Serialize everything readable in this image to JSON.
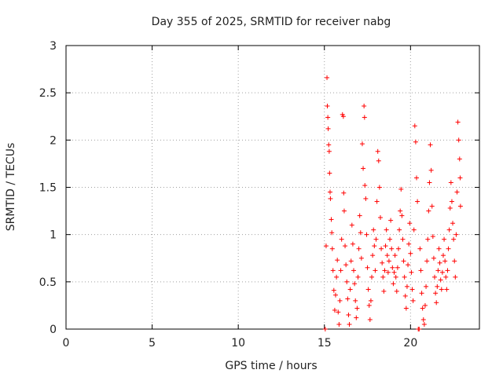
{
  "chart_data": {
    "type": "scatter",
    "title": "Day 355 of 2025, SRMTID for receiver nabg",
    "xlabel": "GPS time / hours",
    "ylabel": "SRMTID / TECUs",
    "xlim": [
      0,
      24
    ],
    "ylim": [
      0,
      3
    ],
    "xticks": [
      0,
      5,
      10,
      15,
      20
    ],
    "yticks": [
      0,
      0.5,
      1,
      1.5,
      2,
      2.5,
      3
    ],
    "grid": true,
    "marker": "+",
    "marker_color": "#ff0000",
    "series": [
      {
        "name": "SRMTID",
        "points": [
          [
            15.05,
            0.0
          ],
          [
            15.1,
            0.88
          ],
          [
            15.15,
            2.66
          ],
          [
            15.17,
            2.36
          ],
          [
            15.2,
            2.24
          ],
          [
            15.22,
            2.12
          ],
          [
            15.25,
            1.95
          ],
          [
            15.28,
            1.88
          ],
          [
            15.3,
            1.65
          ],
          [
            15.33,
            1.45
          ],
          [
            15.35,
            1.38
          ],
          [
            15.4,
            1.16
          ],
          [
            15.43,
            1.02
          ],
          [
            15.46,
            0.85
          ],
          [
            15.5,
            0.62
          ],
          [
            15.55,
            0.41
          ],
          [
            15.6,
            0.2
          ],
          [
            15.65,
            0.36
          ],
          [
            15.7,
            0.55
          ],
          [
            15.75,
            0.73
          ],
          [
            15.8,
            0.18
          ],
          [
            15.85,
            0.05
          ],
          [
            15.9,
            0.3
          ],
          [
            15.95,
            0.62
          ],
          [
            16.0,
            0.95
          ],
          [
            16.05,
            2.27
          ],
          [
            16.1,
            2.25
          ],
          [
            16.12,
            1.44
          ],
          [
            16.15,
            1.25
          ],
          [
            16.2,
            0.88
          ],
          [
            16.25,
            0.68
          ],
          [
            16.3,
            0.5
          ],
          [
            16.35,
            0.32
          ],
          [
            16.4,
            0.15
          ],
          [
            16.45,
            0.05
          ],
          [
            16.5,
            0.42
          ],
          [
            16.55,
            0.72
          ],
          [
            16.6,
            1.1
          ],
          [
            16.65,
            0.9
          ],
          [
            16.7,
            0.62
          ],
          [
            16.75,
            0.48
          ],
          [
            16.8,
            0.3
          ],
          [
            16.85,
            0.12
          ],
          [
            16.9,
            0.22
          ],
          [
            16.95,
            0.55
          ],
          [
            17.0,
            0.85
          ],
          [
            17.05,
            1.2
          ],
          [
            17.1,
            1.02
          ],
          [
            17.15,
            0.75
          ],
          [
            17.2,
            1.96
          ],
          [
            17.25,
            1.7
          ],
          [
            17.3,
            2.36
          ],
          [
            17.33,
            2.24
          ],
          [
            17.35,
            1.52
          ],
          [
            17.4,
            1.38
          ],
          [
            17.45,
            1.0
          ],
          [
            17.5,
            0.65
          ],
          [
            17.55,
            0.42
          ],
          [
            17.6,
            0.25
          ],
          [
            17.65,
            0.1
          ],
          [
            17.7,
            0.3
          ],
          [
            17.75,
            0.55
          ],
          [
            17.8,
            0.78
          ],
          [
            17.85,
            1.05
          ],
          [
            17.9,
            0.88
          ],
          [
            17.95,
            0.62
          ],
          [
            18.0,
            0.95
          ],
          [
            18.05,
            1.35
          ],
          [
            18.1,
            1.88
          ],
          [
            18.15,
            1.78
          ],
          [
            18.2,
            1.5
          ],
          [
            18.25,
            1.18
          ],
          [
            18.3,
            0.85
          ],
          [
            18.35,
            0.7
          ],
          [
            18.4,
            0.55
          ],
          [
            18.45,
            0.4
          ],
          [
            18.5,
            0.62
          ],
          [
            18.55,
            0.88
          ],
          [
            18.6,
            1.05
          ],
          [
            18.65,
            0.78
          ],
          [
            18.7,
            0.6
          ],
          [
            18.75,
            0.72
          ],
          [
            18.8,
            0.95
          ],
          [
            18.85,
            1.15
          ],
          [
            18.9,
            0.85
          ],
          [
            18.95,
            0.65
          ],
          [
            19.0,
            0.48
          ],
          [
            19.05,
            0.6
          ],
          [
            19.1,
            0.78
          ],
          [
            19.15,
            0.55
          ],
          [
            19.2,
            0.4
          ],
          [
            19.25,
            0.65
          ],
          [
            19.3,
            0.85
          ],
          [
            19.35,
            1.05
          ],
          [
            19.4,
            1.25
          ],
          [
            19.45,
            1.48
          ],
          [
            19.5,
            1.2
          ],
          [
            19.55,
            0.95
          ],
          [
            19.6,
            0.72
          ],
          [
            19.65,
            0.55
          ],
          [
            19.7,
            0.35
          ],
          [
            19.75,
            0.22
          ],
          [
            19.8,
            0.45
          ],
          [
            19.85,
            0.68
          ],
          [
            19.9,
            0.9
          ],
          [
            19.95,
            1.12
          ],
          [
            20.0,
            0.8
          ],
          [
            20.05,
            0.6
          ],
          [
            20.1,
            0.42
          ],
          [
            20.15,
            0.3
          ],
          [
            20.2,
            1.05
          ],
          [
            20.25,
            2.15
          ],
          [
            20.3,
            1.98
          ],
          [
            20.35,
            1.6
          ],
          [
            20.4,
            1.35
          ],
          [
            20.45,
            0.0
          ],
          [
            20.5,
            0.0
          ],
          [
            20.55,
            0.85
          ],
          [
            20.6,
            0.62
          ],
          [
            20.65,
            0.38
          ],
          [
            20.7,
            0.22
          ],
          [
            20.75,
            0.1
          ],
          [
            20.8,
            0.05
          ],
          [
            20.85,
            0.25
          ],
          [
            20.9,
            0.45
          ],
          [
            20.95,
            0.72
          ],
          [
            21.0,
            0.95
          ],
          [
            21.05,
            1.25
          ],
          [
            21.1,
            1.55
          ],
          [
            21.15,
            1.95
          ],
          [
            21.2,
            1.68
          ],
          [
            21.25,
            1.3
          ],
          [
            21.3,
            0.98
          ],
          [
            21.35,
            0.75
          ],
          [
            21.4,
            0.55
          ],
          [
            21.45,
            0.38
          ],
          [
            21.5,
            0.28
          ],
          [
            21.55,
            0.45
          ],
          [
            21.6,
            0.62
          ],
          [
            21.65,
            0.85
          ],
          [
            21.7,
            0.7
          ],
          [
            21.75,
            0.52
          ],
          [
            21.8,
            0.42
          ],
          [
            21.85,
            0.6
          ],
          [
            21.9,
            0.78
          ],
          [
            21.95,
            0.95
          ],
          [
            22.0,
            0.72
          ],
          [
            22.05,
            0.55
          ],
          [
            22.1,
            0.42
          ],
          [
            22.15,
            0.62
          ],
          [
            22.2,
            0.85
          ],
          [
            22.25,
            1.05
          ],
          [
            22.3,
            1.28
          ],
          [
            22.35,
            1.55
          ],
          [
            22.4,
            1.35
          ],
          [
            22.45,
            1.12
          ],
          [
            22.5,
            0.95
          ],
          [
            22.55,
            0.72
          ],
          [
            22.6,
            0.55
          ],
          [
            22.65,
            1.0
          ],
          [
            22.7,
            1.45
          ],
          [
            22.75,
            2.19
          ],
          [
            22.8,
            2.0
          ],
          [
            22.85,
            1.8
          ],
          [
            22.88,
            1.6
          ],
          [
            22.9,
            1.3
          ]
        ]
      }
    ]
  }
}
